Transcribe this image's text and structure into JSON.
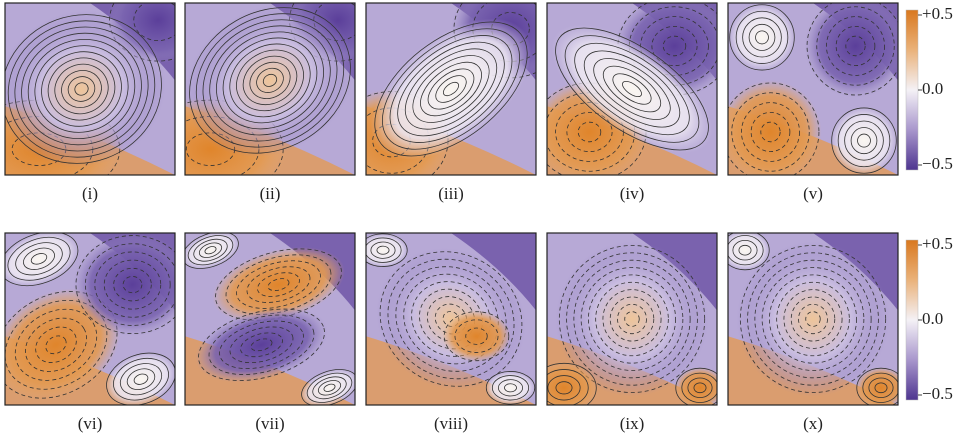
{
  "rows": [
    {
      "panels": [
        {
          "label": "(i)"
        },
        {
          "label": "(ii)"
        },
        {
          "label": "(iii)"
        },
        {
          "label": "(iv)"
        },
        {
          "label": "(v)"
        }
      ],
      "colorbar": {
        "ticks": [
          {
            "value": 0.5,
            "label": "+0.5"
          },
          {
            "value": 0,
            "label": "0.0"
          },
          {
            "value": -0.5,
            "label": "−0.5"
          }
        ]
      }
    },
    {
      "panels": [
        {
          "label": "(vi)"
        },
        {
          "label": "(vii)"
        },
        {
          "label": "(viii)"
        },
        {
          "label": "(ix)"
        },
        {
          "label": "(x)"
        }
      ],
      "colorbar": {
        "ticks": [
          {
            "value": 0.5,
            "label": "+0.5"
          },
          {
            "value": 0,
            "label": "0.0"
          },
          {
            "value": -0.5,
            "label": "−0.5"
          }
        ]
      }
    }
  ]
}
